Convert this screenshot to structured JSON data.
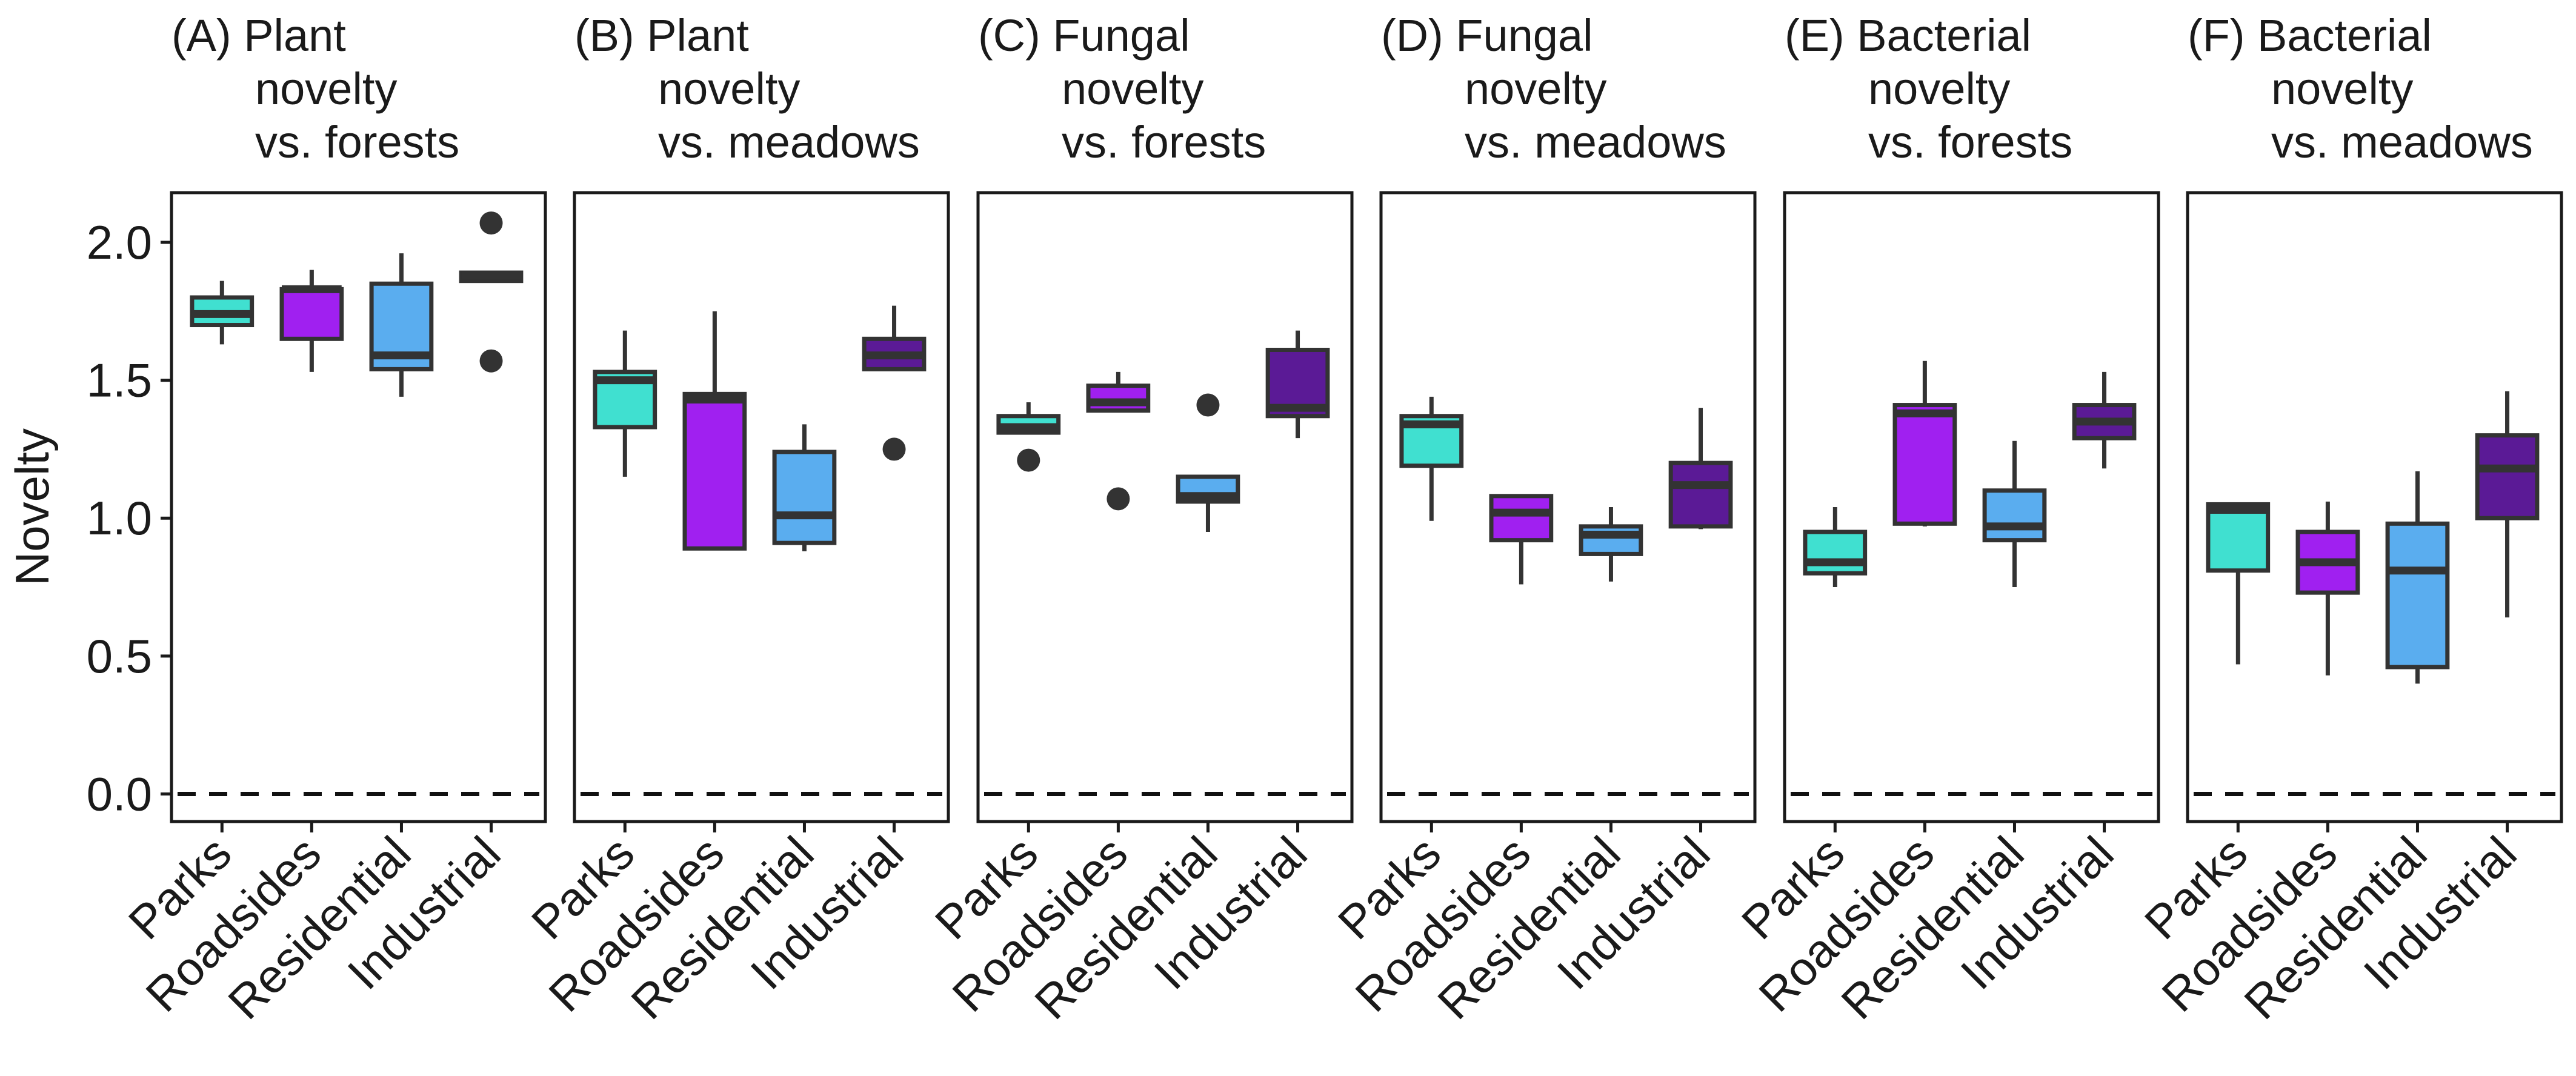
{
  "chart_data": {
    "type": "box",
    "ylabel": "Novelty",
    "ylim": [
      -0.1,
      2.18
    ],
    "yticks": [
      0.0,
      0.5,
      1.0,
      1.5,
      2.0
    ],
    "ytick_labels": [
      "0.0",
      "0.5",
      "1.0",
      "1.5",
      "2.0"
    ],
    "reference_line": {
      "y": 0,
      "style": "dashed"
    },
    "grid": false,
    "legend": "none",
    "categories": [
      "Parks",
      "Roadsides",
      "Residential",
      "Industrial"
    ],
    "category_colors": {
      "Parks": "#40E0D0",
      "Roadsides": "#A020F0",
      "Residential": "#5AADEF",
      "Industrial": "#5B1A96"
    },
    "panels": [
      {
        "title_lines": [
          "(A) Plant",
          "novelty",
          "vs. forests"
        ],
        "boxes": [
          {
            "category": "Parks",
            "min": 1.63,
            "q1": 1.7,
            "median": 1.74,
            "q3": 1.8,
            "max": 1.86,
            "outliers": []
          },
          {
            "category": "Roadsides",
            "min": 1.53,
            "q1": 1.65,
            "median": 1.83,
            "q3": 1.83,
            "max": 1.9,
            "outliers": []
          },
          {
            "category": "Residential",
            "min": 1.44,
            "q1": 1.54,
            "median": 1.59,
            "q3": 1.85,
            "max": 1.96,
            "outliers": []
          },
          {
            "category": "Industrial",
            "min": 1.86,
            "q1": 1.86,
            "median": 1.88,
            "q3": 1.89,
            "max": 1.89,
            "outliers": [
              2.07,
              1.57
            ]
          }
        ]
      },
      {
        "title_lines": [
          "(B) Plant",
          "novelty",
          "vs. meadows"
        ],
        "boxes": [
          {
            "category": "Parks",
            "min": 1.15,
            "q1": 1.33,
            "median": 1.5,
            "q3": 1.53,
            "max": 1.68,
            "outliers": []
          },
          {
            "category": "Roadsides",
            "min": 0.89,
            "q1": 0.89,
            "median": 1.43,
            "q3": 1.45,
            "max": 1.75,
            "outliers": []
          },
          {
            "category": "Residential",
            "min": 0.88,
            "q1": 0.91,
            "median": 1.01,
            "q3": 1.24,
            "max": 1.34,
            "outliers": []
          },
          {
            "category": "Industrial",
            "min": 1.54,
            "q1": 1.54,
            "median": 1.59,
            "q3": 1.65,
            "max": 1.77,
            "outliers": [
              1.25
            ]
          }
        ]
      },
      {
        "title_lines": [
          "(C) Fungal",
          "novelty",
          "vs. forests"
        ],
        "boxes": [
          {
            "category": "Parks",
            "min": 1.31,
            "q1": 1.31,
            "median": 1.33,
            "q3": 1.37,
            "max": 1.42,
            "outliers": [
              1.21
            ]
          },
          {
            "category": "Roadsides",
            "min": 1.39,
            "q1": 1.39,
            "median": 1.42,
            "q3": 1.48,
            "max": 1.53,
            "outliers": [
              1.07
            ]
          },
          {
            "category": "Residential",
            "min": 0.95,
            "q1": 1.06,
            "median": 1.08,
            "q3": 1.15,
            "max": 1.15,
            "outliers": [
              1.41
            ]
          },
          {
            "category": "Industrial",
            "min": 1.29,
            "q1": 1.37,
            "median": 1.4,
            "q3": 1.61,
            "max": 1.68,
            "outliers": []
          }
        ]
      },
      {
        "title_lines": [
          "(D) Fungal",
          "novelty",
          "vs. meadows"
        ],
        "boxes": [
          {
            "category": "Parks",
            "min": 0.99,
            "q1": 1.19,
            "median": 1.34,
            "q3": 1.37,
            "max": 1.44,
            "outliers": []
          },
          {
            "category": "Roadsides",
            "min": 0.76,
            "q1": 0.92,
            "median": 1.02,
            "q3": 1.08,
            "max": 1.08,
            "outliers": []
          },
          {
            "category": "Residential",
            "min": 0.77,
            "q1": 0.87,
            "median": 0.94,
            "q3": 0.97,
            "max": 1.04,
            "outliers": []
          },
          {
            "category": "Industrial",
            "min": 0.96,
            "q1": 0.97,
            "median": 1.12,
            "q3": 1.2,
            "max": 1.4,
            "outliers": []
          }
        ]
      },
      {
        "title_lines": [
          "(E) Bacterial",
          "novelty",
          "vs. forests"
        ],
        "boxes": [
          {
            "category": "Parks",
            "min": 0.75,
            "q1": 0.8,
            "median": 0.84,
            "q3": 0.95,
            "max": 1.04,
            "outliers": []
          },
          {
            "category": "Roadsides",
            "min": 0.97,
            "q1": 0.98,
            "median": 1.38,
            "q3": 1.41,
            "max": 1.57,
            "outliers": []
          },
          {
            "category": "Residential",
            "min": 0.75,
            "q1": 0.92,
            "median": 0.97,
            "q3": 1.1,
            "max": 1.28,
            "outliers": []
          },
          {
            "category": "Industrial",
            "min": 1.18,
            "q1": 1.29,
            "median": 1.35,
            "q3": 1.41,
            "max": 1.53,
            "outliers": []
          }
        ]
      },
      {
        "title_lines": [
          "(F) Bacterial",
          "novelty",
          "vs. meadows"
        ],
        "boxes": [
          {
            "category": "Parks",
            "min": 0.47,
            "q1": 0.81,
            "median": 1.03,
            "q3": 1.05,
            "max": 1.05,
            "outliers": []
          },
          {
            "category": "Roadsides",
            "min": 0.43,
            "q1": 0.73,
            "median": 0.84,
            "q3": 0.95,
            "max": 1.06,
            "outliers": []
          },
          {
            "category": "Residential",
            "min": 0.4,
            "q1": 0.46,
            "median": 0.81,
            "q3": 0.98,
            "max": 1.17,
            "outliers": []
          },
          {
            "category": "Industrial",
            "min": 0.64,
            "q1": 1.0,
            "median": 1.18,
            "q3": 1.3,
            "max": 1.46,
            "outliers": []
          }
        ]
      }
    ]
  }
}
